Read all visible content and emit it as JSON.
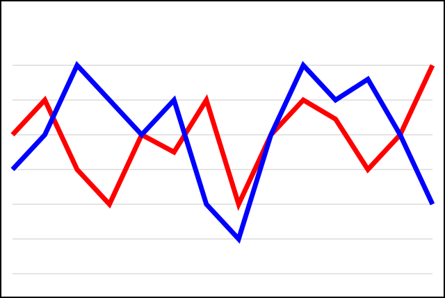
{
  "chart_data": {
    "type": "line",
    "title": "",
    "xlabel": "",
    "ylabel": "",
    "x": [
      1,
      2,
      3,
      4,
      5,
      6,
      7,
      8,
      9,
      10,
      11,
      12,
      13,
      14
    ],
    "ylim": [
      0,
      7
    ],
    "grid": true,
    "gridlines_y": [
      0,
      1,
      2,
      3,
      4,
      5,
      6
    ],
    "axes_visible": false,
    "series": [
      {
        "color": "#ff0000",
        "values": [
          4,
          5,
          3,
          2,
          4,
          3.5,
          5,
          2,
          4,
          5,
          4.45,
          3,
          4,
          6
        ]
      },
      {
        "color": "#0000ff",
        "values": [
          3,
          4,
          6,
          5,
          4,
          5,
          2,
          1,
          4,
          6,
          5,
          5.6,
          4,
          2
        ]
      }
    ]
  }
}
